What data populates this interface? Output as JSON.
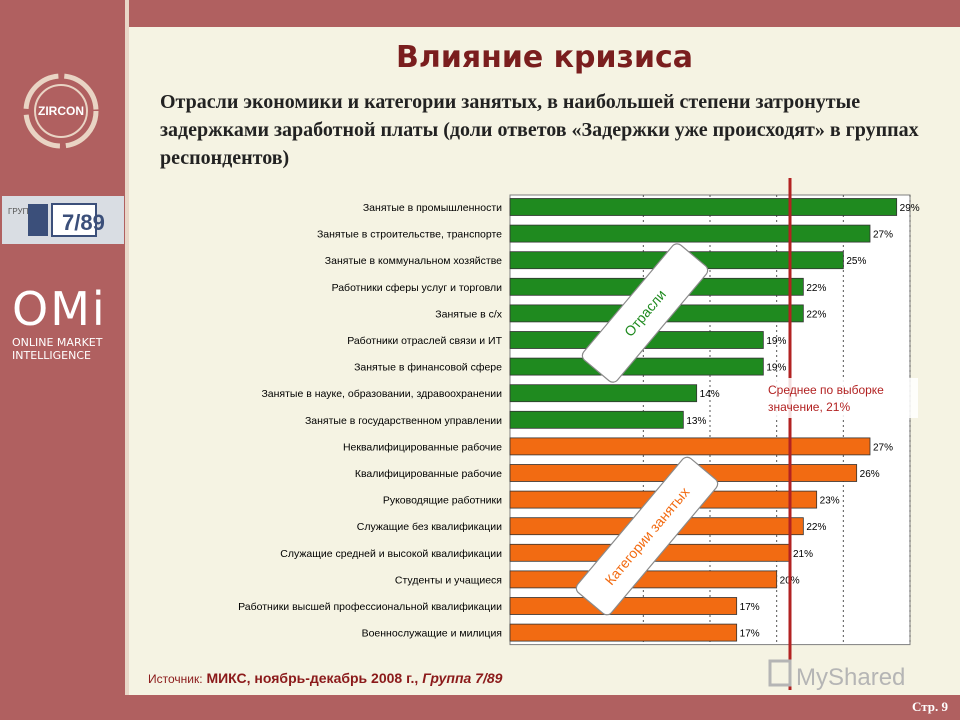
{
  "slide": {
    "title": "Влияние кризиса",
    "subtitle": "Отрасли экономики и категории занятых, в наибольшей степени затронутые задержками заработной платы (доли ответов «Задержки уже происходят» в группах респондентов)",
    "page": "Стр. 9"
  },
  "logos": {
    "zircon": "ZIRCON",
    "group_pre": "ГРУППА",
    "group_num": "7/89",
    "omi": "OMi",
    "omi_line1": "ONLINE MARKET",
    "omi_line2": "INTELLIGENCE"
  },
  "source": {
    "label": "Источник:",
    "text": "МИКС, ноябрь-декабрь 2008 г.,",
    "group": "Группа 7/89"
  },
  "watermark": "MyShared",
  "colors": {
    "industries": "#1f8a1f",
    "categories": "#f26b12",
    "average_line": "#b22222",
    "banner": "#7a1e1e"
  },
  "chart_data": {
    "type": "bar",
    "orientation": "horizontal",
    "xlim": [
      0,
      30
    ],
    "average_value": 21,
    "average_label": "Среднее по выборке значение, 21%",
    "groups": [
      {
        "label": "Отрасли",
        "color": "#1f8a1f",
        "start": 0,
        "end": 9
      },
      {
        "label": "Категории занятых",
        "color": "#f26b12",
        "start": 9,
        "end": 17
      }
    ],
    "categories": [
      "Занятые в промышленности",
      "Занятые в строительстве, транспорте",
      "Занятые в коммунальном хозяйстве",
      "Работники сферы услуг и торговли",
      "Занятые в с/х",
      "Работники отраслей связи и ИТ",
      "Занятые в финансовой сфере",
      "Занятые в науке, образовании, здравоохранении",
      "Занятые в государственном управлении",
      "Неквалифицированные рабочие",
      "Квалифицированные рабочие",
      "Руководящие работники",
      "Служащие без квалификации",
      "Служащие средней и высокой квалификации",
      "Студенты и учащиеся",
      "Работники высшей профессиональной квалификации",
      "Военнослужащие и милиция"
    ],
    "values": [
      29,
      27,
      25,
      22,
      22,
      19,
      19,
      14,
      13,
      27,
      26,
      23,
      22,
      21,
      20,
      17,
      17
    ],
    "value_labels": [
      "29%",
      "27%",
      "25%",
      "22%",
      "22%",
      "19%",
      "19%",
      "14%",
      "13%",
      "27%",
      "26%",
      "23%",
      "22%",
      "21%",
      "20%",
      "17%",
      "17%"
    ]
  }
}
